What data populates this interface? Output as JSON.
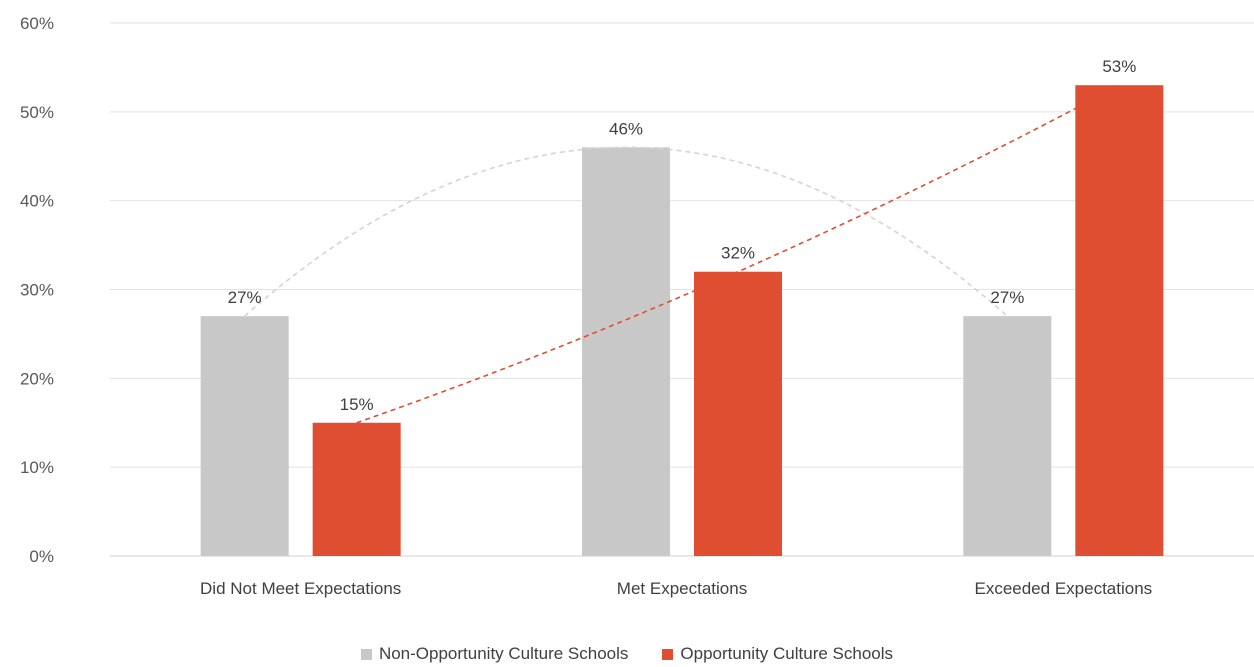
{
  "chart_data": {
    "type": "bar",
    "categories": [
      "Did Not Meet Expectations",
      "Met Expectations",
      "Exceeded Expectations"
    ],
    "series": [
      {
        "name": "Non-Opportunity Culture Schools",
        "values": [
          27,
          46,
          27
        ],
        "labels": [
          "27%",
          "46%",
          "27%"
        ],
        "color": "#c8c8c8",
        "trend_color": "#d4d4d4"
      },
      {
        "name": "Opportunity Culture Schools",
        "values": [
          15,
          32,
          53
        ],
        "labels": [
          "15%",
          "32%",
          "53%"
        ],
        "color": "#e04e32",
        "trend_color": "#e04e32"
      }
    ],
    "yticks": [
      "0%",
      "10%",
      "20%",
      "30%",
      "40%",
      "50%",
      "60%"
    ],
    "ylim": [
      0,
      60
    ],
    "grid": true,
    "trendlines": "dashed",
    "legend": "bottom-center",
    "title": "",
    "xlabel": "",
    "ylabel": ""
  }
}
